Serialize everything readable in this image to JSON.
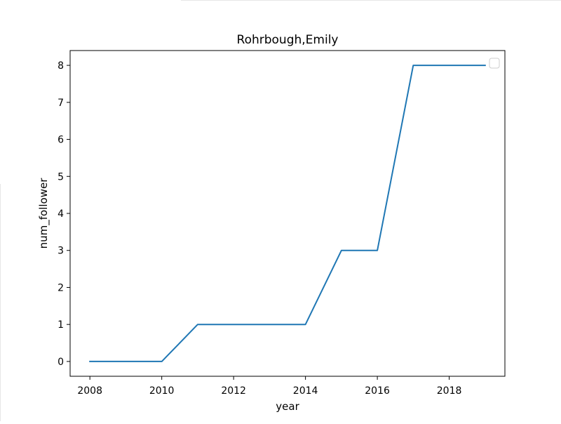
{
  "chart_data": {
    "type": "line",
    "title": "Rohrbough,Emily",
    "xlabel": "year",
    "ylabel": "num_follower",
    "xlim": [
      2007.45,
      2019.55
    ],
    "ylim": [
      -0.4,
      8.4
    ],
    "xticks": [
      2008,
      2010,
      2012,
      2014,
      2016,
      2018
    ],
    "yticks": [
      0,
      1,
      2,
      3,
      4,
      5,
      6,
      7,
      8
    ],
    "x": [
      2008,
      2009,
      2010,
      2011,
      2012,
      2013,
      2014,
      2015,
      2016,
      2017,
      2018,
      2019
    ],
    "series": [
      {
        "values": [
          0,
          0,
          0,
          1,
          1,
          1,
          1,
          3,
          3,
          8,
          8,
          8
        ],
        "color": "#1f77b4"
      }
    ],
    "legend": "top-right",
    "legend_entries": [],
    "grid": false
  }
}
